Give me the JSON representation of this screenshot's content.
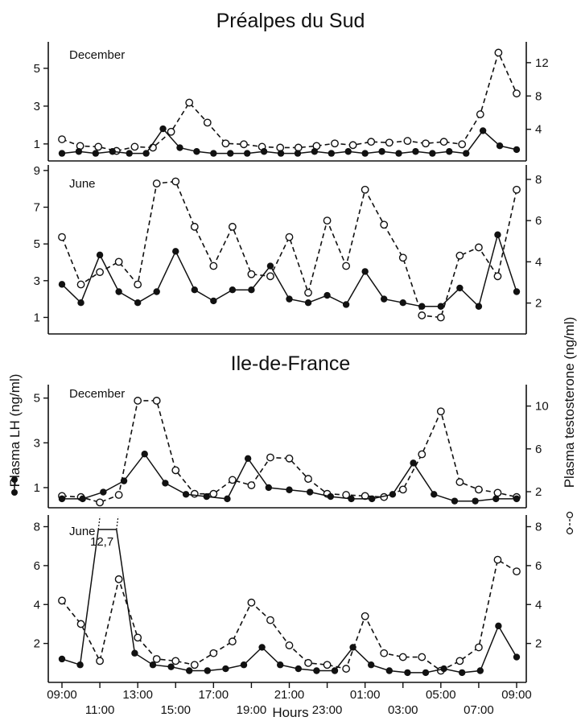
{
  "chart_data": {
    "type": "line",
    "x_label": "Hours",
    "x_tick_labels_upper": [
      "09:00",
      "13:00",
      "17:00",
      "21:00",
      "01:00",
      "05:00",
      "09:00"
    ],
    "x_tick_labels_lower": [
      "11:00",
      "15:00",
      "19:00",
      "23:00",
      "03:00",
      "07:00"
    ],
    "left_axis_label": "Plasma LH (ng/ml)",
    "right_axis_label": "Plasma testosterone (ng/ml)",
    "groups": [
      {
        "title": "Préalpes du Sud",
        "panels": [
          {
            "label": "December",
            "left_ticks": [
              "1",
              "3",
              "5"
            ],
            "right_ticks": [
              "4",
              "8",
              "12"
            ],
            "lh": [
              0.5,
              0.6,
              0.5,
              0.6,
              0.5,
              0.5,
              1.8,
              0.8,
              0.6,
              0.5,
              0.5,
              0.5,
              0.6,
              0.5,
              0.5,
              0.6,
              0.5,
              0.6,
              0.5,
              0.6,
              0.5,
              0.6,
              0.5,
              0.6,
              0.5,
              1.7,
              0.9,
              0.7
            ],
            "testosterone": [
              2.8,
              2.0,
              1.9,
              1.4,
              1.9,
              1.8,
              3.7,
              7.2,
              4.8,
              2.3,
              2.2,
              1.9,
              1.8,
              1.8,
              2.0,
              2.3,
              2.1,
              2.5,
              2.4,
              2.6,
              2.3,
              2.5,
              2.2,
              5.8,
              13.2,
              8.3
            ]
          },
          {
            "label": "June",
            "left_ticks": [
              "1",
              "3",
              "5",
              "7",
              "9"
            ],
            "right_ticks": [
              "2",
              "4",
              "6",
              "8"
            ],
            "lh": [
              2.8,
              1.8,
              4.4,
              2.4,
              1.8,
              2.4,
              4.6,
              2.5,
              1.9,
              2.5,
              2.5,
              3.8,
              2.0,
              1.8,
              2.2,
              1.7,
              3.5,
              2.0,
              1.8,
              1.6,
              1.6,
              2.6,
              1.6,
              5.5,
              2.4
            ],
            "testosterone": [
              5.2,
              2.9,
              3.5,
              4.0,
              2.9,
              7.8,
              7.9,
              5.7,
              3.8,
              5.7,
              3.4,
              3.3,
              5.2,
              2.5,
              6.0,
              3.8,
              7.5,
              5.8,
              4.2,
              1.4,
              1.3,
              4.3,
              4.7,
              3.3,
              7.5
            ]
          }
        ]
      },
      {
        "title": "Ile-de-France",
        "panels": [
          {
            "label": "December",
            "left_ticks": [
              "1",
              "3",
              "5"
            ],
            "right_ticks": [
              "2",
              "6",
              "10"
            ],
            "lh": [
              0.5,
              0.5,
              0.8,
              1.3,
              2.5,
              1.2,
              0.7,
              0.6,
              0.5,
              2.3,
              1.0,
              0.9,
              0.8,
              0.6,
              0.5,
              0.5,
              0.7,
              2.1,
              0.7,
              0.4,
              0.4,
              0.5,
              0.5
            ],
            "testosterone": [
              1.6,
              1.5,
              1.0,
              1.7,
              10.5,
              10.5,
              4.0,
              1.8,
              1.8,
              3.1,
              2.6,
              5.2,
              5.1,
              3.2,
              1.8,
              1.7,
              1.6,
              1.5,
              2.2,
              5.5,
              9.5,
              2.9,
              2.2,
              1.9,
              1.5
            ]
          },
          {
            "label": "June",
            "left_ticks": [
              "2",
              "4",
              "6",
              "8"
            ],
            "right_ticks": [
              "2",
              "4",
              "6",
              "8"
            ],
            "annotation": "12,7",
            "lh": [
              1.2,
              0.9,
              12.7,
              12.7,
              1.5,
              0.9,
              0.8,
              0.6,
              0.6,
              0.7,
              0.9,
              1.8,
              0.9,
              0.7,
              0.6,
              0.6,
              1.8,
              0.9,
              0.6,
              0.5,
              0.5,
              0.7,
              0.5,
              0.6,
              2.9,
              1.3
            ],
            "testosterone": [
              4.2,
              3.0,
              1.1,
              5.3,
              2.3,
              1.2,
              1.1,
              0.9,
              1.5,
              2.1,
              4.1,
              3.2,
              1.9,
              1.0,
              0.9,
              0.7,
              3.4,
              1.5,
              1.3,
              1.3,
              0.6,
              1.1,
              1.8,
              6.3,
              5.7
            ]
          }
        ]
      }
    ]
  }
}
